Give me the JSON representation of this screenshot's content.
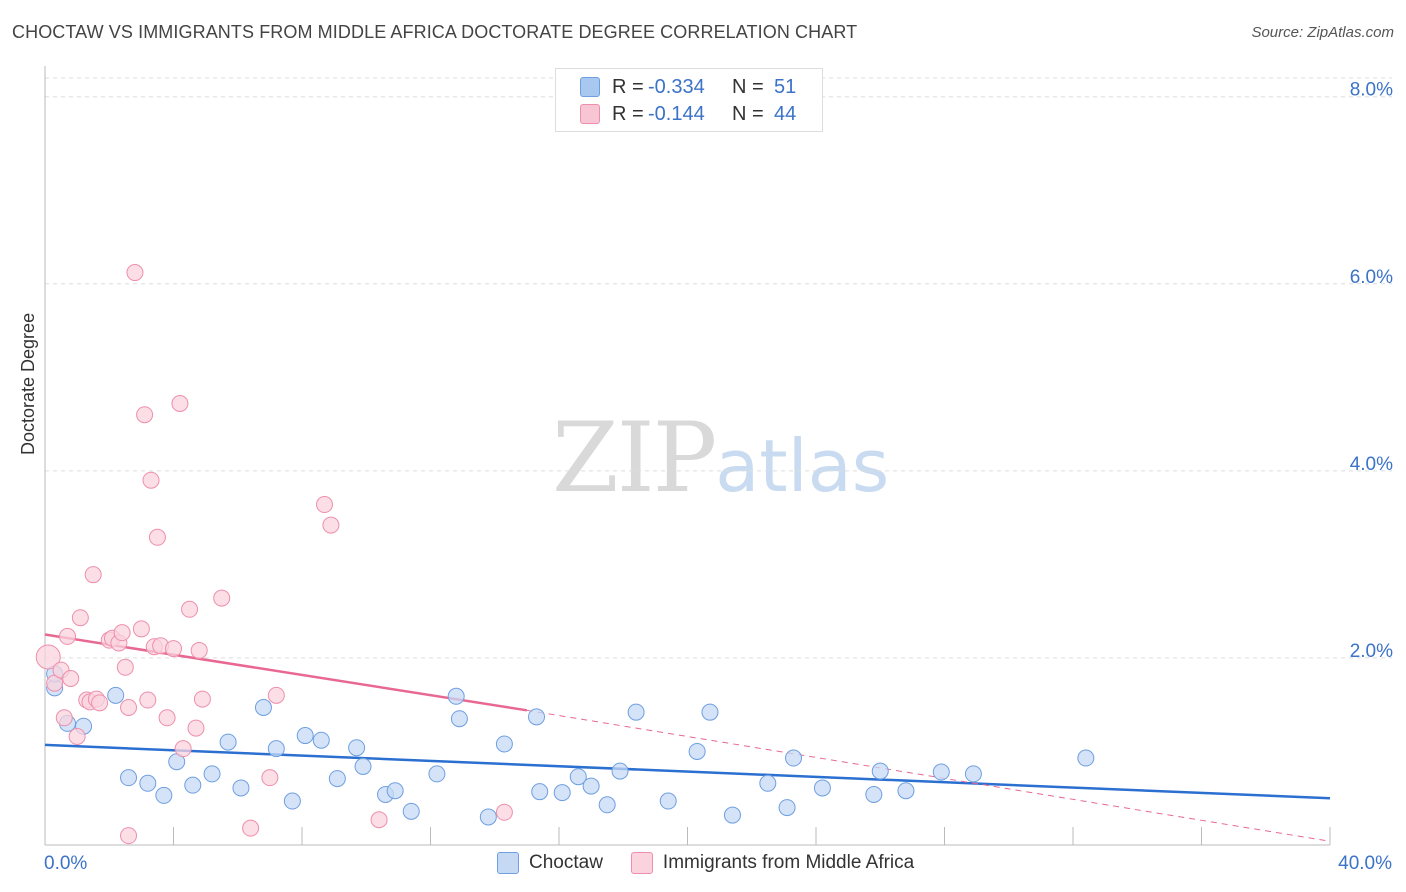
{
  "header": {
    "title": "CHOCTAW VS IMMIGRANTS FROM MIDDLE AFRICA DOCTORATE DEGREE CORRELATION CHART",
    "source": "Source: ZipAtlas.com"
  },
  "watermark": {
    "zip": "ZIP",
    "atlas": "atlas"
  },
  "legend": {
    "rows": [
      {
        "r_label": "R =",
        "r_value": "-0.334",
        "n_label": "N =",
        "n_value": "51",
        "color": "#a9c8f0",
        "border": "#6f9fe0"
      },
      {
        "r_label": "R =",
        "r_value": "-0.144",
        "n_label": "N =",
        "n_value": "44",
        "color": "#f7c5d3",
        "border": "#ee8fad"
      }
    ]
  },
  "bottom_legend": [
    {
      "label": "Choctaw",
      "color": "#c5d9f5",
      "border": "#6f9fe0"
    },
    {
      "label": "Immigrants from Middle Africa",
      "color": "#fad3de",
      "border": "#ee8fad"
    }
  ],
  "chart_data": {
    "type": "scatter",
    "title": "CHOCTAW VS IMMIGRANTS FROM MIDDLE AFRICA DOCTORATE DEGREE CORRELATION CHART",
    "xlabel": "",
    "ylabel": "Doctorate Degree",
    "xlim": [
      0,
      40
    ],
    "ylim": [
      0,
      8.2
    ],
    "x_tick_labels": [
      "0.0%",
      "40.0%"
    ],
    "y_ticks": [
      2,
      4,
      6,
      8
    ],
    "y_tick_labels": [
      "2.0%",
      "4.0%",
      "6.0%",
      "8.0%"
    ],
    "grid": true,
    "series": [
      {
        "name": "Choctaw",
        "color": "#6f9fe0",
        "fill": "#c5d9f5",
        "trend": {
          "x": [
            0,
            40
          ],
          "y": [
            1.07,
            0.5
          ],
          "color": "#2b6fd0"
        },
        "points": [
          [
            0.3,
            1.68
          ],
          [
            0.3,
            1.83
          ],
          [
            0.7,
            1.3
          ],
          [
            1.2,
            1.27
          ],
          [
            2.2,
            1.6
          ],
          [
            2.6,
            0.72
          ],
          [
            3.2,
            0.66
          ],
          [
            3.7,
            0.53
          ],
          [
            4.1,
            0.89
          ],
          [
            4.6,
            0.64
          ],
          [
            5.2,
            0.76
          ],
          [
            5.7,
            1.1
          ],
          [
            6.1,
            0.61
          ],
          [
            6.8,
            1.47
          ],
          [
            7.2,
            1.03
          ],
          [
            7.7,
            0.47
          ],
          [
            8.1,
            1.17
          ],
          [
            8.6,
            1.12
          ],
          [
            9.1,
            0.71
          ],
          [
            9.7,
            1.04
          ],
          [
            9.9,
            0.84
          ],
          [
            10.6,
            0.54
          ],
          [
            10.9,
            0.58
          ],
          [
            11.4,
            0.36
          ],
          [
            12.2,
            0.76
          ],
          [
            12.8,
            1.59
          ],
          [
            12.9,
            1.35
          ],
          [
            13.8,
            0.3
          ],
          [
            14.3,
            1.08
          ],
          [
            15.3,
            1.37
          ],
          [
            15.4,
            0.57
          ],
          [
            16.1,
            0.56
          ],
          [
            16.6,
            0.73
          ],
          [
            17.0,
            0.63
          ],
          [
            17.5,
            0.43
          ],
          [
            17.9,
            0.79
          ],
          [
            18.4,
            1.42
          ],
          [
            19.4,
            0.47
          ],
          [
            20.3,
            1.0
          ],
          [
            20.7,
            1.42
          ],
          [
            21.4,
            0.32
          ],
          [
            22.5,
            0.66
          ],
          [
            23.1,
            0.4
          ],
          [
            23.3,
            0.93
          ],
          [
            24.2,
            0.61
          ],
          [
            25.8,
            0.54
          ],
          [
            26.0,
            0.79
          ],
          [
            26.8,
            0.58
          ],
          [
            27.9,
            0.78
          ],
          [
            28.9,
            0.76
          ],
          [
            32.4,
            0.93
          ]
        ]
      },
      {
        "name": "Immigrants from Middle Africa",
        "color": "#ee8fad",
        "fill": "#fad3de",
        "trend": {
          "x": [
            0,
            15
          ],
          "y": [
            2.25,
            1.44
          ],
          "color": "#e86892"
        },
        "trend_dashed": {
          "x": [
            15,
            40
          ],
          "y": [
            1.44,
            0.04
          ],
          "color": "#e86892"
        },
        "points": [
          [
            0.1,
            2.01
          ],
          [
            0.3,
            1.73
          ],
          [
            0.5,
            1.87
          ],
          [
            0.6,
            1.36
          ],
          [
            0.7,
            2.23
          ],
          [
            0.8,
            1.78
          ],
          [
            1.0,
            1.16
          ],
          [
            1.1,
            2.43
          ],
          [
            1.3,
            1.55
          ],
          [
            1.4,
            1.53
          ],
          [
            1.5,
            2.89
          ],
          [
            1.6,
            1.56
          ],
          [
            1.7,
            1.52
          ],
          [
            2.0,
            2.19
          ],
          [
            2.1,
            2.21
          ],
          [
            2.3,
            2.16
          ],
          [
            2.4,
            2.27
          ],
          [
            2.5,
            1.9
          ],
          [
            2.6,
            1.47
          ],
          [
            2.8,
            6.12
          ],
          [
            3.0,
            2.31
          ],
          [
            3.1,
            4.6
          ],
          [
            3.2,
            1.55
          ],
          [
            3.3,
            3.9
          ],
          [
            3.4,
            2.12
          ],
          [
            3.5,
            3.29
          ],
          [
            3.6,
            2.13
          ],
          [
            3.8,
            1.36
          ],
          [
            4.0,
            2.1
          ],
          [
            4.2,
            4.72
          ],
          [
            4.3,
            1.03
          ],
          [
            4.5,
            2.52
          ],
          [
            4.7,
            1.25
          ],
          [
            4.8,
            2.08
          ],
          [
            4.9,
            1.56
          ],
          [
            5.5,
            2.64
          ],
          [
            6.4,
            0.18
          ],
          [
            7.0,
            0.72
          ],
          [
            7.2,
            1.6
          ],
          [
            8.7,
            3.64
          ],
          [
            8.9,
            3.42
          ],
          [
            10.4,
            0.27
          ],
          [
            14.3,
            0.35
          ],
          [
            2.6,
            0.1
          ]
        ]
      }
    ]
  }
}
